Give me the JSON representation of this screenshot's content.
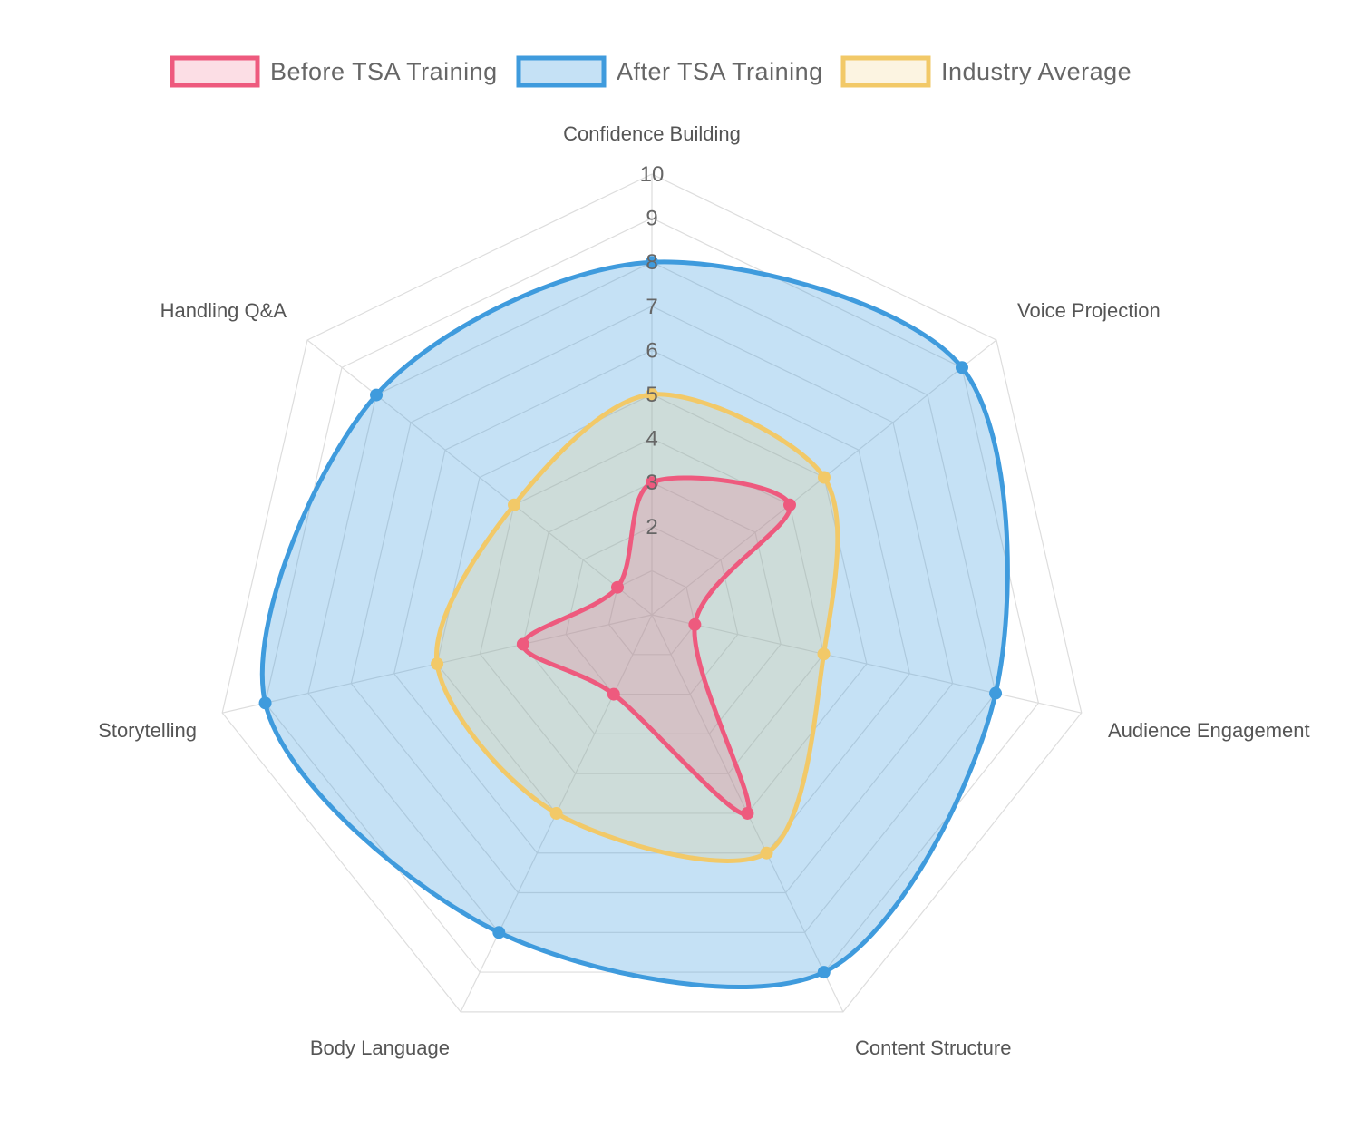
{
  "chart_data": {
    "type": "radar",
    "axes": [
      "Confidence Building",
      "Voice Projection",
      "Audience Engagement",
      "Content Structure",
      "Body Language",
      "Storytelling",
      "Handling Q&A"
    ],
    "rlim": [
      0,
      10
    ],
    "ticks": [
      "2",
      "3",
      "4",
      "5",
      "6",
      "7",
      "8",
      "9",
      "10"
    ],
    "grid": true,
    "legend_position": "top",
    "series": [
      {
        "name": "Before TSA Training",
        "values": [
          3,
          4,
          1,
          5,
          2,
          3,
          1
        ],
        "color": "#ee5a7e",
        "fill": "rgba(238,90,126,0.2)"
      },
      {
        "name": "After TSA Training",
        "values": [
          8,
          9,
          8,
          9,
          8,
          9,
          8
        ],
        "color": "#3f9bdd",
        "fill": "rgba(63,155,221,0.3)"
      },
      {
        "name": "Industry Average",
        "values": [
          5,
          5,
          4,
          6,
          5,
          5,
          4
        ],
        "color": "#f2c968",
        "fill": "rgba(242,201,104,0.2)"
      }
    ]
  }
}
